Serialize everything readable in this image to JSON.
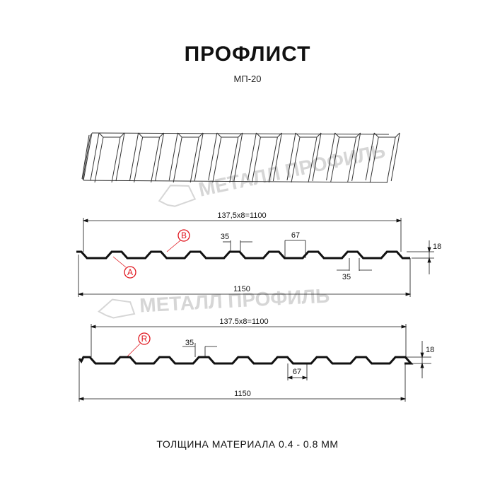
{
  "header": {
    "title": "ПРОФЛИСТ",
    "subtitle": "МП-20"
  },
  "watermark": {
    "text": "МЕТАЛЛ ПРОФИЛЬ"
  },
  "profile_1": {
    "pitch_label": "137,5x8=1100",
    "total_label": "1150",
    "top_width_label": "35",
    "bottom_width_label": "35",
    "rib_base_label": "67",
    "height_label": "18",
    "marker_a": "A",
    "marker_b": "B"
  },
  "profile_2": {
    "pitch_label": "137.5x8=1100",
    "total_label": "1150",
    "top_width_label": "35",
    "rib_base_label": "67",
    "height_label": "18",
    "marker_r": "R"
  },
  "footer": {
    "text": "ТОЛЩИНА МАТЕРИАЛА 0.4 - 0.8 ММ"
  },
  "colors": {
    "line": "#111111",
    "marker": "#e0141c",
    "watermark": "#d6d6d6"
  }
}
